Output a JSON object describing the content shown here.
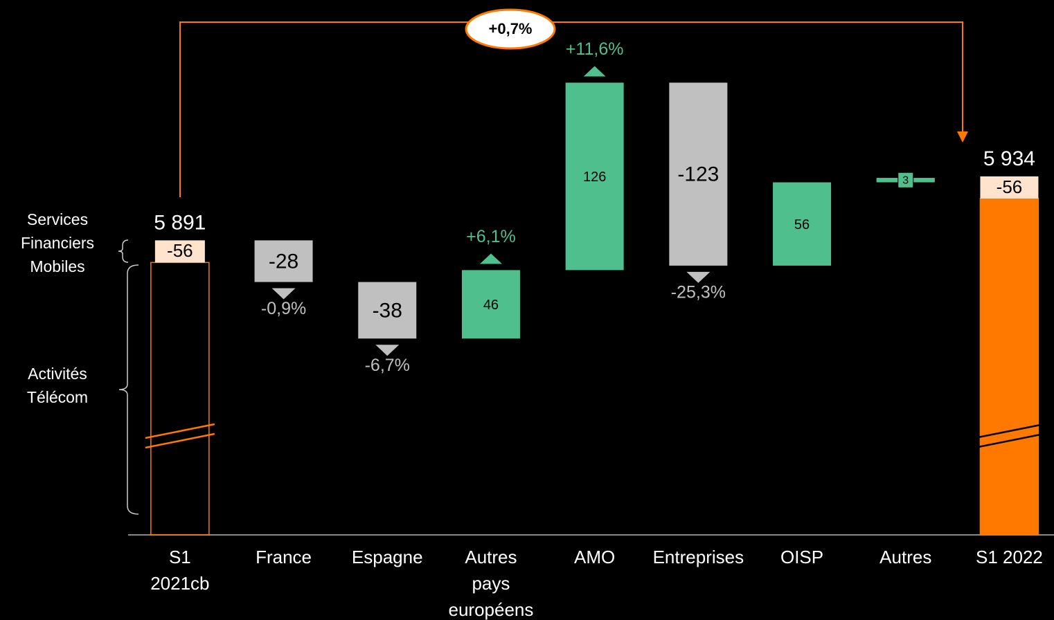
{
  "chart_data": {
    "type": "waterfall",
    "categories": [
      [
        "S1",
        "2021cb"
      ],
      [
        "France"
      ],
      [
        "Espagne"
      ],
      [
        "Autres",
        "pays",
        "européens"
      ],
      [
        "AMO"
      ],
      [
        "Entreprises"
      ],
      [
        "OISP"
      ],
      [
        "Autres"
      ],
      [
        "S1 2022"
      ]
    ],
    "measure": [
      "total",
      "relative",
      "relative",
      "relative",
      "relative",
      "relative",
      "relative",
      "relative",
      "total"
    ],
    "values": [
      5891,
      -28,
      -38,
      46,
      126,
      -123,
      56,
      3,
      5934
    ],
    "value_labels": [
      "5 891",
      null,
      null,
      null,
      null,
      null,
      null,
      null,
      "5 934"
    ],
    "sfm_values": [
      -56,
      null,
      null,
      null,
      null,
      null,
      null,
      null,
      -56
    ],
    "growth_labels": [
      null,
      "-0,9%",
      "-6,7%",
      "+6,1%",
      "+11,6%",
      "-25,3%",
      null,
      null,
      null
    ],
    "total_change_label": "+0,7%",
    "brace_labels": [
      [
        "Services",
        "Financiers",
        "Mobiles"
      ],
      [
        "Activités",
        "Télécom"
      ]
    ],
    "ylim": [
      5800,
      6000
    ],
    "colors": {
      "increase": "#4fc08d",
      "decrease": "#c0c0c0",
      "total": "#ff7900",
      "sfm": "#ffe3cc"
    }
  }
}
